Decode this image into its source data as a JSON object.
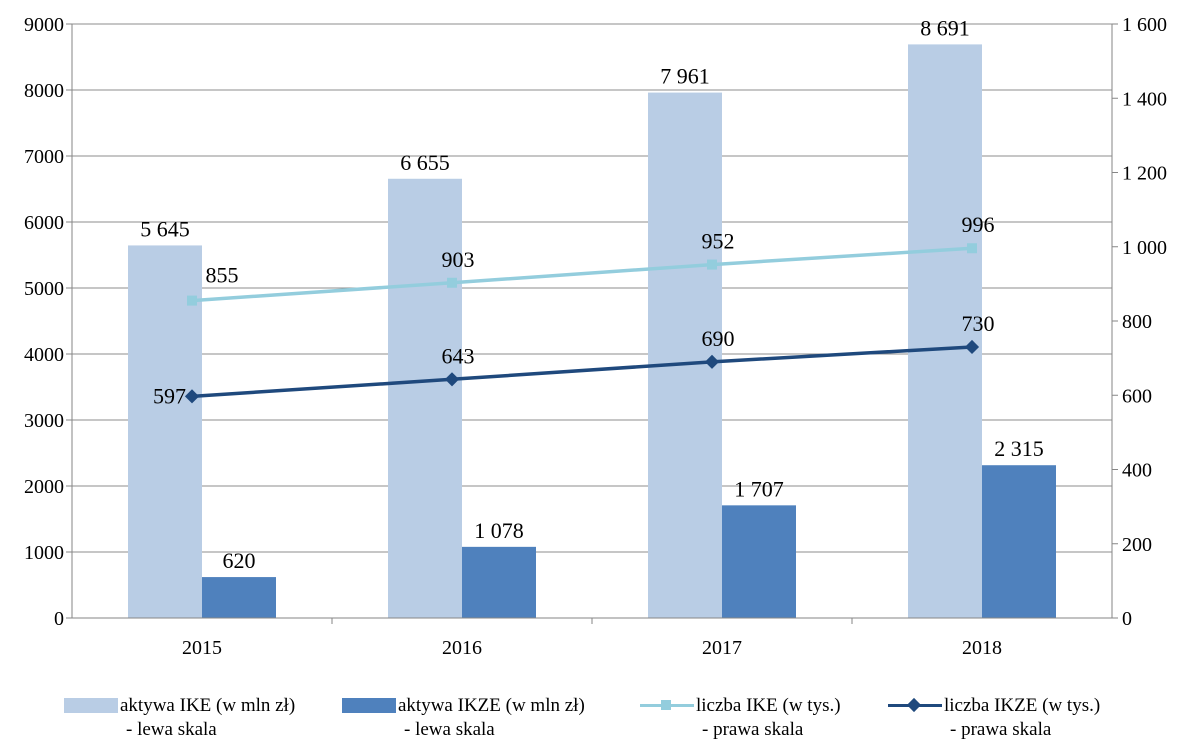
{
  "chart_data": {
    "type": "bar",
    "categories": [
      "2015",
      "2016",
      "2017",
      "2018"
    ],
    "y_left": {
      "min": 0,
      "max": 9000,
      "step": 1000,
      "ticks": [
        "0",
        "1000",
        "2000",
        "3000",
        "4000",
        "5000",
        "6000",
        "7000",
        "8000",
        "9000"
      ]
    },
    "y_right": {
      "min": 0,
      "max": 1600,
      "step": 200,
      "ticks": [
        "0",
        "200",
        "400",
        "600",
        "800",
        "1 000",
        "1 200",
        "1 400",
        "1 600"
      ]
    },
    "grid": true,
    "legend_position": "bottom",
    "series": [
      {
        "name_line1": "aktywa IKE (w mln zł)",
        "name_line2": "- lewa skala",
        "type": "bar",
        "axis": "left",
        "color": "#b9cde5",
        "values": [
          5645,
          6655,
          7961,
          8691
        ],
        "labels": [
          "5 645",
          "6 655",
          "7 961",
          "8 691"
        ]
      },
      {
        "name_line1": "aktywa IKZE (w mln zł)",
        "name_line2": "- lewa skala",
        "type": "bar",
        "axis": "left",
        "color": "#4f81bd",
        "values": [
          620,
          1078,
          1707,
          2315
        ],
        "labels": [
          "620",
          "1 078",
          "1 707",
          "2 315"
        ]
      },
      {
        "name_line1": "liczba IKE (w tys.)",
        "name_line2": "- prawa skala",
        "type": "line",
        "axis": "right",
        "color": "#93cddd",
        "marker": "square",
        "values": [
          855,
          903,
          952,
          996
        ],
        "labels": [
          "855",
          "903",
          "952",
          "996"
        ]
      },
      {
        "name_line1": "liczba IKZE (w tys.)",
        "name_line2": "- prawa skala",
        "type": "line",
        "axis": "right",
        "color": "#1f497d",
        "marker": "diamond",
        "values": [
          597,
          643,
          690,
          730
        ],
        "labels": [
          "597",
          "643",
          "690",
          "730"
        ]
      }
    ]
  }
}
